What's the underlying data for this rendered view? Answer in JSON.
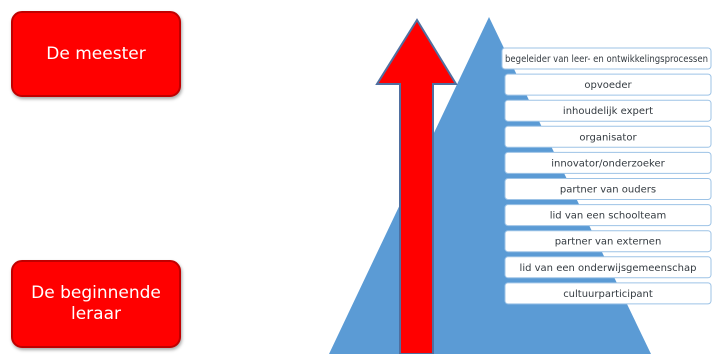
{
  "levels": {
    "top": "De meester",
    "bottom": "De beginnende leraar"
  },
  "roles": [
    "begeleider van leer- en ontwikkelingsprocessen",
    "opvoeder",
    "inhoudelijk expert",
    "organisator",
    "innovator/onderzoeker",
    "partner van ouders",
    "lid van een schoolteam",
    "partner van externen",
    "lid van een onderwijsgemeenschap",
    "cultuurparticipant"
  ],
  "colors": {
    "box_red": "#ff0000",
    "pyramid_blue": "#5b9bd5",
    "arrow_red": "#ff0000",
    "role_box_fill": "#ffffff",
    "role_box_border": "#9dc3e6"
  }
}
